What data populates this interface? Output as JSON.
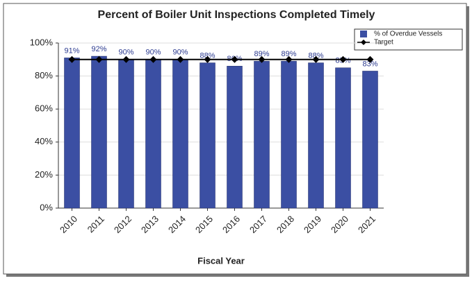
{
  "chart_data": {
    "type": "bar",
    "title": "Percent of Boiler Unit Inspections Completed Timely",
    "x_label": "Fiscal Year",
    "categories": [
      "2010",
      "2011",
      "2012",
      "2013",
      "2014",
      "2015",
      "2016",
      "2017",
      "2018",
      "2019",
      "2020",
      "2021"
    ],
    "series": [
      {
        "name": "% of Overdue Vessels",
        "type": "bar",
        "color": "#3b4fa3",
        "values": [
          91,
          92,
          90,
          90,
          90,
          88,
          86,
          89,
          89,
          88,
          85,
          83
        ],
        "value_labels": [
          "91%",
          "92%",
          "90%",
          "90%",
          "90%",
          "88%",
          "86%",
          "89%",
          "89%",
          "88%",
          "85%",
          "83%"
        ]
      },
      {
        "name": "Target",
        "type": "line",
        "color": "#000000",
        "values": [
          90,
          90,
          90,
          90,
          90,
          90,
          90,
          90,
          90,
          90,
          90,
          90
        ]
      }
    ],
    "ylim": [
      0,
      100
    ],
    "yticks": [
      {
        "value": 0,
        "label": "0%"
      },
      {
        "value": 20,
        "label": "20%"
      },
      {
        "value": 40,
        "label": "40%"
      },
      {
        "value": 60,
        "label": "60%"
      },
      {
        "value": 80,
        "label": "80%"
      },
      {
        "value": 100,
        "label": "100%"
      }
    ],
    "grid": true,
    "legend": "top-right"
  }
}
